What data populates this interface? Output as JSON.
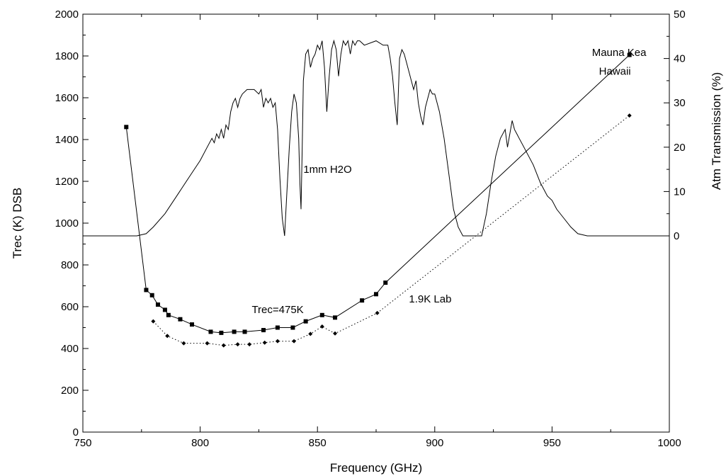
{
  "chart_data": {
    "type": "line",
    "xlabel": "Frequency (GHz)",
    "ylabel": "Trec (K) DSB",
    "y2label": "Atm Transmission (%)",
    "xlim": [
      750,
      1000
    ],
    "ylim": [
      0,
      2000
    ],
    "y2lim": [
      0,
      50
    ],
    "y2_tick_range": [
      0,
      50
    ],
    "xticks": [
      750,
      800,
      850,
      900,
      950,
      1000
    ],
    "yticks": [
      0,
      200,
      400,
      600,
      800,
      1000,
      1200,
      1400,
      1600,
      1800,
      2000
    ],
    "y2ticks": [
      0,
      10,
      20,
      30,
      40,
      50
    ],
    "grid": false,
    "legend": "none",
    "annotations": [
      {
        "text": "1mm H2O",
        "x": 844,
        "y": 1240
      },
      {
        "text": "Mauna Kea",
        "x": 967,
        "y": 1800
      },
      {
        "text": "Hawaii",
        "x": 970,
        "y": 1710
      },
      {
        "text": "Trec=475K",
        "x": 822,
        "y": 570
      },
      {
        "text": "1.9K Lab",
        "x": 889,
        "y": 620
      }
    ],
    "series": [
      {
        "axis": "y",
        "style": "solid",
        "marker": "square",
        "x": [
          768.5,
          777,
          779.5,
          782,
          785,
          786.5,
          791.5,
          796.5,
          804.5,
          809,
          814.5,
          819,
          827,
          833,
          839.5,
          845,
          852,
          857.5,
          869,
          875,
          879,
          983
        ],
        "values": [
          1460,
          680,
          655,
          610,
          585,
          560,
          540,
          515,
          480,
          475,
          480,
          480,
          488,
          500,
          500,
          530,
          560,
          548,
          630,
          660,
          715,
          1805
        ]
      },
      {
        "axis": "y",
        "style": "dotted",
        "marker": "diamond",
        "x": [
          780,
          786,
          793,
          803,
          810,
          816,
          821,
          827.5,
          833,
          840,
          847,
          852,
          857.5,
          875.5,
          983
        ],
        "values": [
          530,
          460,
          425,
          425,
          415,
          420,
          420,
          428,
          435,
          435,
          470,
          505,
          472,
          570,
          1515
        ]
      },
      {
        "axis": "y2",
        "style": "solid",
        "marker": "none",
        "x": [
          750,
          773,
          777,
          780,
          785,
          790,
          795,
          800,
          803,
          805,
          806,
          807,
          808,
          809,
          810,
          811,
          812,
          813,
          814,
          815,
          816,
          817,
          818,
          820,
          823,
          825,
          826,
          827,
          828,
          829,
          830,
          831,
          832,
          833,
          834,
          835,
          836,
          837,
          838,
          839,
          840,
          841,
          842,
          842.5,
          843,
          843.5,
          844,
          845,
          846,
          847,
          848,
          849,
          850,
          851,
          852,
          853,
          854,
          855,
          856,
          857,
          858,
          859,
          860,
          861,
          862,
          863,
          864,
          865,
          866,
          867,
          868,
          870,
          875,
          878,
          880,
          881,
          882,
          883,
          884,
          885,
          886,
          887,
          888,
          889,
          890,
          891,
          892,
          893,
          894,
          895,
          896,
          897,
          898,
          899,
          900,
          902,
          904,
          906,
          908,
          910,
          912,
          914,
          916,
          918,
          920,
          922,
          924,
          926,
          928,
          930,
          931,
          932,
          933,
          934,
          935,
          936,
          938,
          940,
          942,
          945,
          948,
          950,
          952,
          955,
          958,
          961,
          965,
          1000
        ],
        "values": [
          0,
          0,
          0.5,
          2,
          5,
          9,
          13,
          17,
          20,
          22,
          21,
          23,
          22,
          24,
          22,
          25,
          24,
          28,
          30,
          31,
          29,
          31,
          32,
          33,
          33,
          32,
          33,
          29,
          31,
          30,
          31,
          29,
          30,
          24,
          13,
          4,
          0,
          10,
          20,
          28,
          32,
          30,
          22,
          12,
          6,
          20,
          35,
          41,
          42,
          38,
          40,
          41,
          43,
          42,
          44,
          38,
          28,
          36,
          42,
          44,
          42,
          36,
          41,
          44,
          43,
          44,
          41,
          44,
          43,
          44,
          44,
          43,
          44,
          43,
          43,
          40,
          36,
          30,
          25,
          40,
          42,
          41,
          39,
          37,
          35,
          33,
          35,
          30,
          27,
          25,
          29,
          31,
          33,
          32,
          32,
          28,
          22,
          14,
          6,
          2,
          0,
          0,
          0,
          0,
          0,
          5,
          12,
          18,
          22,
          24,
          20,
          23,
          26,
          24,
          23,
          22,
          20,
          18,
          16,
          12,
          9,
          8,
          6,
          4,
          2,
          0.5,
          0,
          0
        ]
      }
    ]
  }
}
